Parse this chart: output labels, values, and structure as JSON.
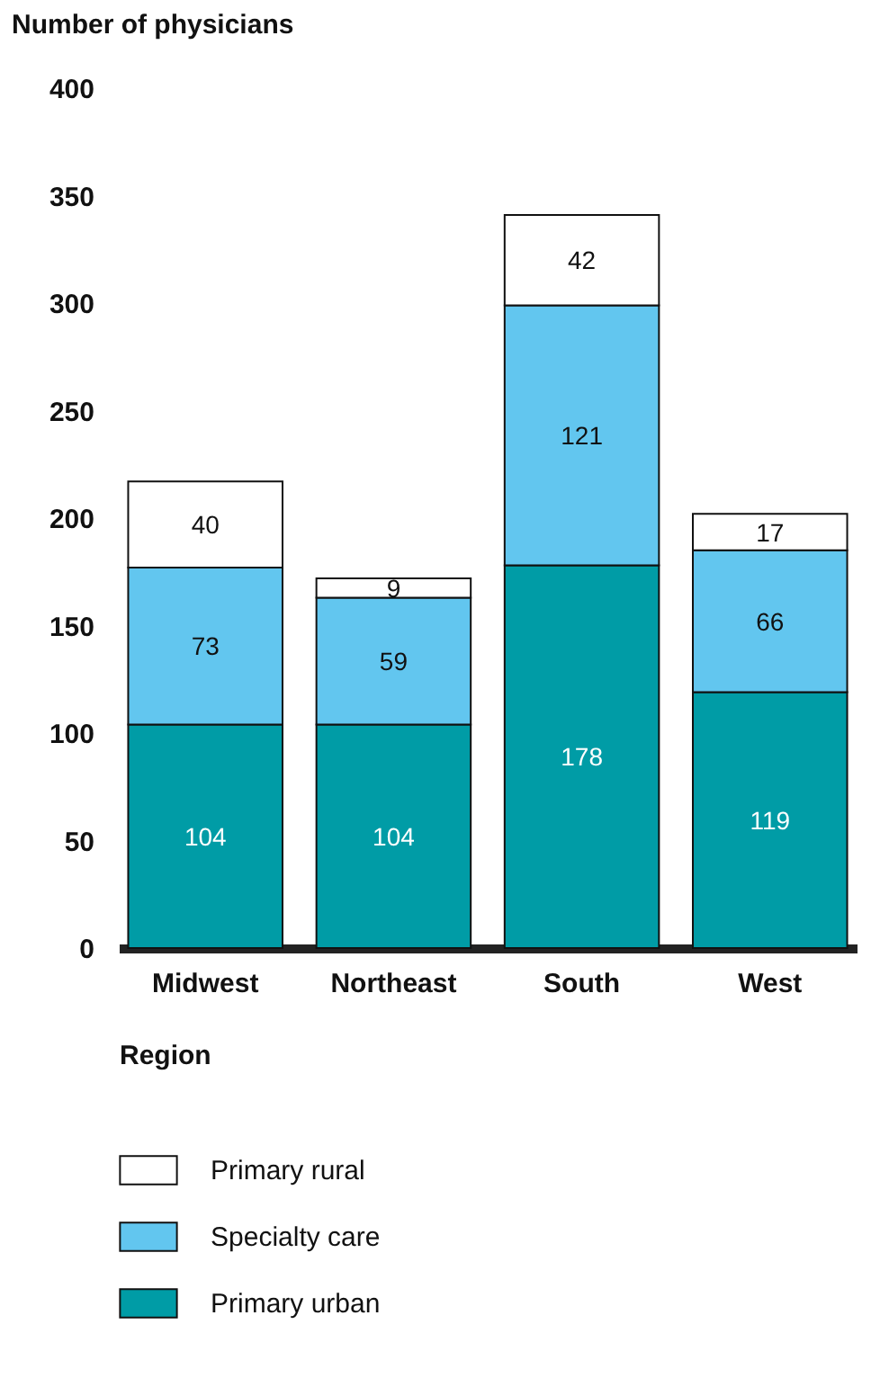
{
  "chart_data": {
    "type": "bar",
    "stacked": true,
    "ylabel": "Number of physicians",
    "xlabel": "Region",
    "categories": [
      "Midwest",
      "Northeast",
      "South",
      "West"
    ],
    "series": [
      {
        "name": "Primary urban",
        "color": "#009ca6",
        "values": [
          104,
          104,
          178,
          119
        ]
      },
      {
        "name": "Specialty care",
        "color": "#62c6ef",
        "values": [
          73,
          59,
          121,
          66
        ]
      },
      {
        "name": "Primary rural",
        "color": "#ffffff",
        "values": [
          40,
          9,
          42,
          17
        ]
      }
    ],
    "ylim": [
      0,
      400
    ],
    "yticks": [
      0,
      50,
      100,
      150,
      200,
      250,
      300,
      350,
      400
    ],
    "data_labels": true,
    "grid": false,
    "legend": "bottom"
  }
}
